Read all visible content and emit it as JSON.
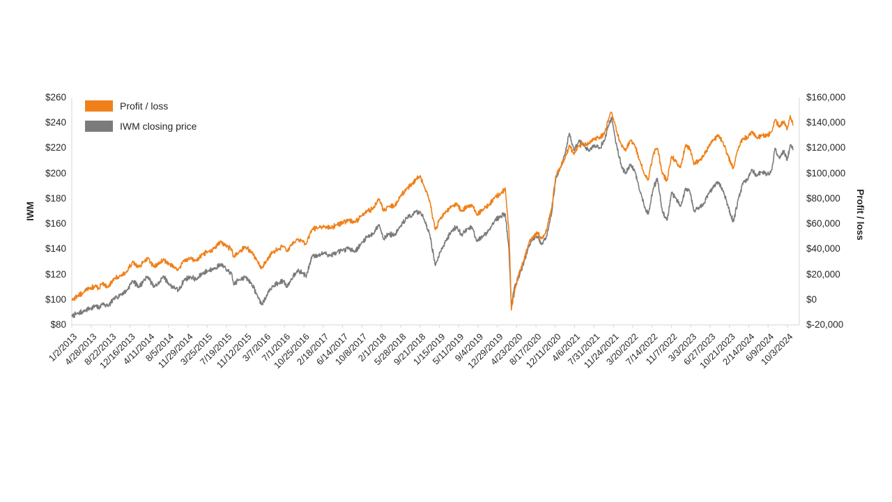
{
  "chart_data": {
    "type": "line",
    "title": "",
    "background": "#ffffff",
    "axis_line_color": "#d6d6d6",
    "text_color": "#262626",
    "grid": false,
    "legend_position": "top-left",
    "left_axis": {
      "title": "IWM",
      "min": 80,
      "max": 260,
      "tick_step": 20,
      "tick_labels": [
        "$260",
        "$240",
        "$220",
        "$200",
        "$180",
        "$160",
        "$140",
        "$120",
        "$100",
        "$80"
      ]
    },
    "right_axis": {
      "title": "Profit / loss",
      "min": -20000,
      "max": 160000,
      "tick_step": 20000,
      "tick_labels": [
        "$160,000",
        "$140,000",
        "$120,000",
        "$100,000",
        "$80,000",
        "$60,000",
        "$40,000",
        "$20,000",
        "$0",
        "$-20,000"
      ]
    },
    "x_tick_labels": [
      "1/2/2013",
      "4/28/2013",
      "8/22/2013",
      "12/16/2013",
      "4/11/2014",
      "8/5/2014",
      "11/29/2014",
      "3/25/2015",
      "7/19/2015",
      "11/12/2015",
      "3/7/2016",
      "7/1/2016",
      "10/25/2016",
      "2/18/2017",
      "6/14/2017",
      "10/8/2017",
      "2/1/2018",
      "5/28/2018",
      "9/21/2018",
      "1/15/2019",
      "5/11/2019",
      "9/4/2019",
      "12/29/2019",
      "4/23/2020",
      "8/17/2020",
      "12/11/2020",
      "4/6/2021",
      "7/31/2021",
      "11/24/2021",
      "3/20/2022",
      "7/14/2022",
      "11/7/2022",
      "3/3/2023",
      "6/27/2023",
      "10/21/2023",
      "2/14/2024",
      "6/9/2024",
      "10/3/2024"
    ],
    "x": [
      2013.0,
      2013.1,
      2013.2,
      2013.3,
      2013.4,
      2013.45,
      2013.5,
      2013.6,
      2013.7,
      2013.8,
      2013.9,
      2014.0,
      2014.1,
      2014.2,
      2014.25,
      2014.35,
      2014.45,
      2014.5,
      2014.6,
      2014.7,
      2014.75,
      2014.85,
      2014.95,
      2015.05,
      2015.15,
      2015.25,
      2015.35,
      2015.45,
      2015.55,
      2015.62,
      2015.66,
      2015.75,
      2015.85,
      2015.95,
      2016.05,
      2016.12,
      2016.2,
      2016.3,
      2016.4,
      2016.48,
      2016.53,
      2016.6,
      2016.7,
      2016.8,
      2016.85,
      2016.95,
      2017.05,
      2017.15,
      2017.25,
      2017.35,
      2017.45,
      2017.55,
      2017.65,
      2017.75,
      2017.85,
      2017.95,
      2018.05,
      2018.12,
      2018.2,
      2018.3,
      2018.4,
      2018.5,
      2018.6,
      2018.65,
      2018.7,
      2018.72,
      2018.8,
      2018.88,
      2018.97,
      2019.05,
      2019.15,
      2019.25,
      2019.33,
      2019.4,
      2019.5,
      2019.58,
      2019.65,
      2019.75,
      2019.85,
      2019.95,
      2020.05,
      2020.12,
      2020.18,
      2020.22,
      2020.28,
      2020.35,
      2020.42,
      2020.5,
      2020.58,
      2020.65,
      2020.72,
      2020.8,
      2020.88,
      2020.95,
      2021.03,
      2021.1,
      2021.17,
      2021.25,
      2021.33,
      2021.42,
      2021.5,
      2021.58,
      2021.67,
      2021.75,
      2021.83,
      2021.87,
      2021.92,
      2021.95,
      2022.03,
      2022.1,
      2022.17,
      2022.25,
      2022.33,
      2022.42,
      2022.47,
      2022.55,
      2022.62,
      2022.7,
      2022.78,
      2022.85,
      2022.92,
      2023.0,
      2023.08,
      2023.15,
      2023.22,
      2023.3,
      2023.38,
      2023.47,
      2023.55,
      2023.62,
      2023.7,
      2023.78,
      2023.83,
      2023.87,
      2023.95,
      2024.03,
      2024.1,
      2024.17,
      2024.25,
      2024.33,
      2024.42,
      2024.5,
      2024.55,
      2024.62,
      2024.7,
      2024.75,
      2024.8,
      2024.85
    ],
    "series": [
      {
        "name": "Profit / loss",
        "axis": "right",
        "color": "#F08019",
        "jitter": 2200,
        "values": [
          0,
          3000,
          6000,
          9000,
          11000,
          9000,
          13000,
          10000,
          17000,
          19000,
          22000,
          30000,
          26000,
          31000,
          33000,
          26000,
          29000,
          32000,
          28000,
          25000,
          24000,
          31000,
          33000,
          31000,
          36000,
          38000,
          41000,
          46000,
          42000,
          40000,
          34000,
          38000,
          42000,
          38000,
          30000,
          25000,
          31000,
          38000,
          40000,
          42000,
          38000,
          43000,
          48000,
          46000,
          44000,
          56000,
          57000,
          58000,
          57000,
          59000,
          61000,
          63000,
          61000,
          66000,
          70000,
          72000,
          80000,
          70000,
          74000,
          74000,
          82000,
          88000,
          92000,
          95000,
          97000,
          98000,
          88000,
          78000,
          55000,
          64000,
          70000,
          74000,
          76000,
          70000,
          74000,
          75000,
          67000,
          71000,
          75000,
          81000,
          84000,
          88000,
          55000,
          -8000,
          8000,
          22000,
          30000,
          44000,
          50000,
          53000,
          48000,
          55000,
          72000,
          98000,
          105000,
          112000,
          122000,
          115000,
          122000,
          123000,
          124000,
          127000,
          128000,
          132000,
          145000,
          148000,
          140000,
          133000,
          122000,
          118000,
          126000,
          122000,
          110000,
          98000,
          95000,
          115000,
          120000,
          100000,
          94000,
          114000,
          110000,
          105000,
          122000,
          120000,
          107000,
          110000,
          114000,
          122000,
          127000,
          130000,
          124000,
          114000,
          107000,
          104000,
          120000,
          128000,
          128000,
          133000,
          128000,
          130000,
          130000,
          133000,
          143000,
          137000,
          141000,
          134000,
          146000,
          138000
        ]
      },
      {
        "name": "IWM closing price",
        "axis": "left",
        "color": "#7B7B7B",
        "jitter": 2.2,
        "values": [
          87,
          89,
          91,
          93,
          95,
          93,
          97,
          95,
          101,
          104,
          107,
          115,
          110,
          116,
          118,
          110,
          114,
          119,
          112,
          109,
          107,
          116,
          118,
          116,
          121,
          123,
          125,
          128,
          123,
          121,
          112,
          116,
          118,
          113,
          103,
          96,
          103,
          111,
          113,
          115,
          110,
          116,
          123,
          121,
          118,
          135,
          135,
          137,
          135,
          137,
          139,
          141,
          138,
          144,
          150,
          152,
          160,
          148,
          152,
          151,
          158,
          165,
          167,
          170,
          169,
          170,
          162,
          152,
          127,
          138,
          147,
          155,
          158,
          151,
          156,
          157,
          146,
          150,
          155,
          163,
          166,
          168,
          140,
          95,
          112,
          118,
          128,
          142,
          148,
          150,
          144,
          150,
          168,
          196,
          205,
          215,
          232,
          218,
          226,
          222,
          218,
          222,
          220,
          226,
          240,
          244,
          230,
          222,
          205,
          200,
          207,
          202,
          186,
          172,
          168,
          188,
          196,
          170,
          163,
          185,
          180,
          174,
          188,
          186,
          170,
          172,
          176,
          185,
          190,
          193,
          186,
          174,
          166,
          162,
          180,
          193,
          195,
          203,
          198,
          201,
          199,
          203,
          220,
          212,
          218,
          210,
          222,
          219
        ]
      }
    ]
  }
}
